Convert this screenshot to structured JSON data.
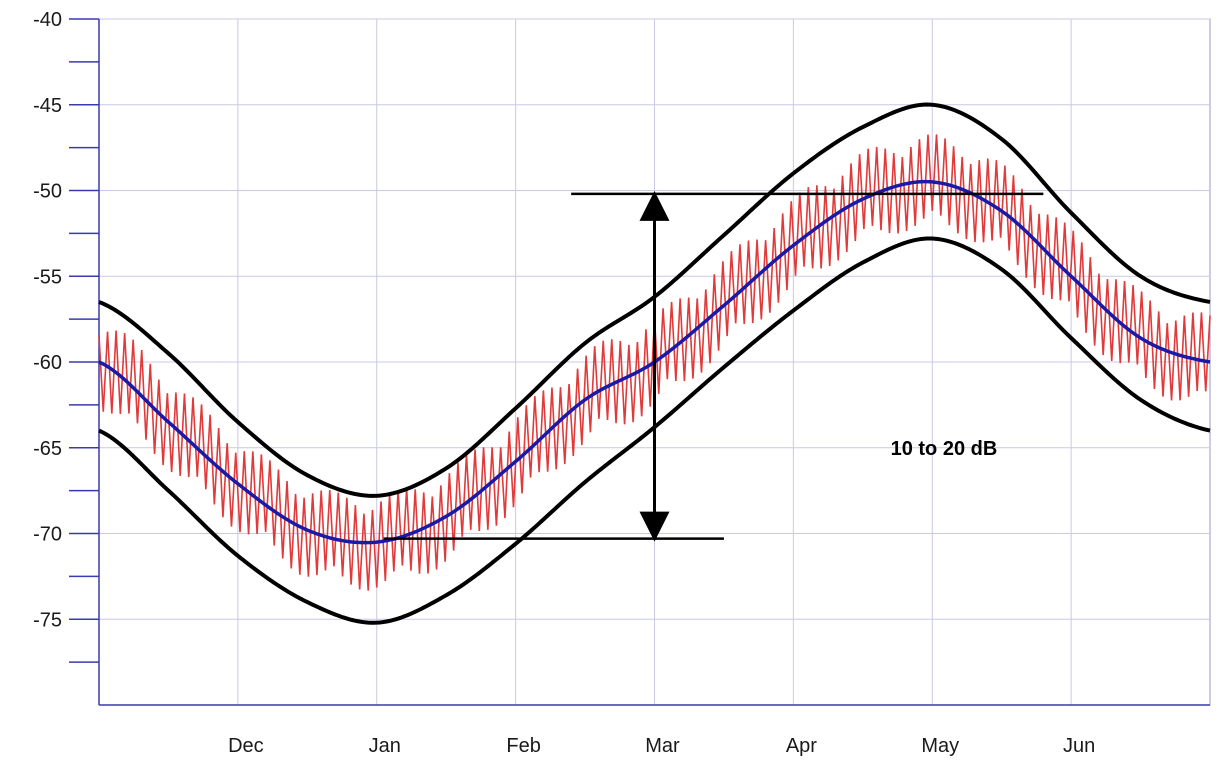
{
  "chart_data": {
    "type": "line",
    "title": "",
    "xlabel": "",
    "ylabel": "",
    "x_categories": [
      "Dec",
      "Jan",
      "Feb",
      "Mar",
      "Apr",
      "May",
      "Jun"
    ],
    "xlim": [
      "Nov",
      "Jun"
    ],
    "ylim": [
      -80,
      -40
    ],
    "y_ticks": [
      "-40",
      "-45",
      "-50",
      "-55",
      "-60",
      "-65",
      "-70",
      "-75"
    ],
    "grid": true,
    "legend": "none",
    "series": [
      {
        "role": "mean-level",
        "color": "#1a1aa8",
        "x": [
          0,
          0.5,
          1,
          1.5,
          2,
          2.5,
          3,
          3.5,
          4,
          4.5,
          5,
          5.5,
          6,
          6.5,
          7,
          7.5,
          8
        ],
        "y": [
          -60.0,
          -63.5,
          -67.1,
          -69.8,
          -70.5,
          -69.0,
          -65.8,
          -62.2,
          -60.0,
          -56.7,
          -53.2,
          -50.5,
          -49.5,
          -51.2,
          -55.0,
          -58.6,
          -60.0
        ]
      },
      {
        "role": "upper-envelope",
        "color": "#000000",
        "x": [
          0,
          0.5,
          1,
          1.5,
          2,
          2.5,
          3,
          3.5,
          4,
          4.5,
          5,
          5.5,
          6,
          6.5,
          7,
          7.5,
          8
        ],
        "y": [
          -56.5,
          -59.5,
          -63.5,
          -66.6,
          -67.8,
          -66.2,
          -62.7,
          -58.9,
          -56.2,
          -52.6,
          -49.0,
          -46.3,
          -45.0,
          -47.0,
          -51.3,
          -55.0,
          -56.5
        ]
      },
      {
        "role": "lower-envelope",
        "color": "#000000",
        "x": [
          0,
          0.5,
          1,
          1.5,
          2,
          2.5,
          3,
          3.5,
          4,
          4.5,
          5,
          5.5,
          6,
          6.5,
          7,
          7.5,
          8
        ],
        "y": [
          -64.0,
          -67.5,
          -71.3,
          -74.0,
          -75.2,
          -73.6,
          -70.6,
          -67.0,
          -63.8,
          -60.3,
          -57.0,
          -54.2,
          -52.8,
          -54.6,
          -58.6,
          -62.2,
          -64.0
        ]
      },
      {
        "role": "daily-fluctuation",
        "color": "#e03a3a",
        "spike_count": 130,
        "amplitude_db": 2.8
      }
    ],
    "annotations": [
      {
        "text": "10 to 20 dB",
        "x": 5.7,
        "y": -65
      },
      {
        "type": "range-arrow",
        "x": 4.0,
        "y_from": -50.2,
        "y_to": -70.3
      }
    ],
    "reference_lines": [
      {
        "y": -50.2,
        "x_from": 3.4,
        "x_to": 6.8
      },
      {
        "y": -70.3,
        "x_from": 2.05,
        "x_to": 4.5
      }
    ]
  }
}
